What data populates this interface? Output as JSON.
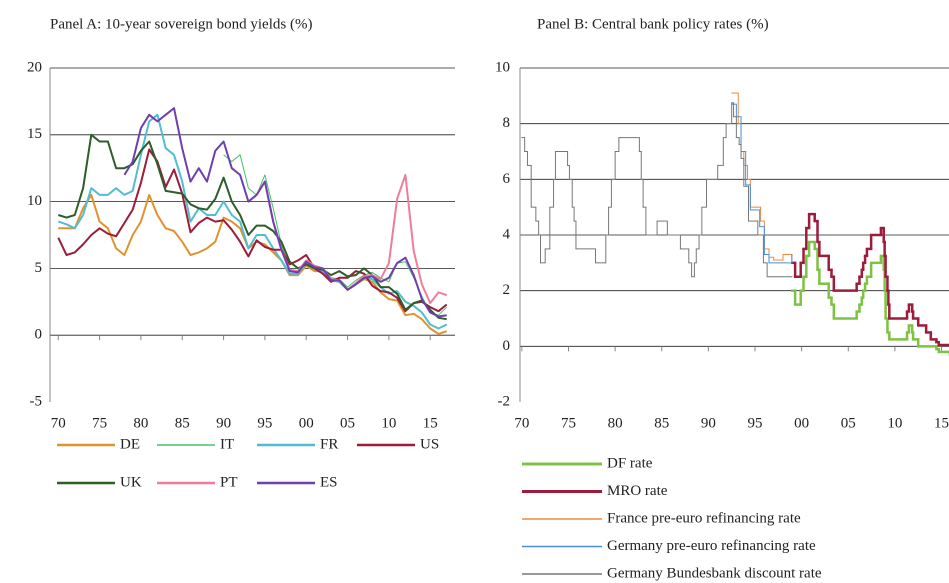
{
  "chart_data": [
    {
      "type": "line",
      "title": "Panel A: 10-year sovereign bond yields (%)",
      "x": [
        1970,
        1971,
        1972,
        1973,
        1974,
        1975,
        1976,
        1977,
        1978,
        1979,
        1980,
        1981,
        1982,
        1983,
        1984,
        1985,
        1986,
        1987,
        1988,
        1989,
        1990,
        1991,
        1992,
        1993,
        1994,
        1995,
        1996,
        1997,
        1998,
        1999,
        2000,
        2001,
        2002,
        2003,
        2004,
        2005,
        2006,
        2007,
        2008,
        2009,
        2010,
        2011,
        2012,
        2013,
        2014,
        2015,
        2016,
        2017
      ],
      "xlim": [
        1969,
        2018
      ],
      "xticks": [
        {
          "value": 1970,
          "label": "70"
        },
        {
          "value": 1975,
          "label": "75"
        },
        {
          "value": 1980,
          "label": "80"
        },
        {
          "value": 1985,
          "label": "85"
        },
        {
          "value": 1990,
          "label": "90"
        },
        {
          "value": 1995,
          "label": "95"
        },
        {
          "value": 2000,
          "label": "00"
        },
        {
          "value": 2005,
          "label": "05"
        },
        {
          "value": 2010,
          "label": "10"
        },
        {
          "value": 2015,
          "label": "15"
        }
      ],
      "ylim": [
        -5,
        20
      ],
      "yticks": [
        20,
        15,
        10,
        5,
        0,
        -5
      ],
      "grid": true,
      "legend": "bottom",
      "series": [
        {
          "name": "DE",
          "color": "#e0922f",
          "line_width": 2,
          "values": [
            8,
            8,
            8,
            9.5,
            10.5,
            8.5,
            8,
            6.5,
            6,
            7.5,
            8.5,
            10.5,
            9,
            8,
            7.8,
            7,
            6,
            6.2,
            6.5,
            7,
            8.8,
            8.5,
            8,
            6.5,
            7,
            6.8,
            6.2,
            5.6,
            4.5,
            4.5,
            5.2,
            4.8,
            4.8,
            4.1,
            4,
            3.4,
            3.8,
            4.2,
            4,
            3.2,
            2.7,
            2.6,
            1.5,
            1.6,
            1.2,
            0.5,
            0.1,
            0.3
          ]
        },
        {
          "name": "IT",
          "color": "#45c06a",
          "line_width": 1,
          "values": [
            null,
            null,
            null,
            null,
            null,
            null,
            null,
            null,
            null,
            null,
            null,
            null,
            null,
            null,
            null,
            null,
            null,
            null,
            null,
            null,
            13.5,
            13,
            13.5,
            11,
            10.5,
            12,
            9.5,
            6.8,
            4.9,
            4.7,
            5.6,
            5.2,
            5,
            4.3,
            4.2,
            3.6,
            4.1,
            4.5,
            4.7,
            4.3,
            4,
            5.4,
            5.5,
            4.3,
            2.9,
            1.7,
            1.5,
            2.1
          ]
        },
        {
          "name": "FR",
          "color": "#52bcd3",
          "line_width": 2,
          "values": [
            8.5,
            8.3,
            8,
            9,
            11,
            10.5,
            10.5,
            11,
            10.5,
            10.8,
            13.5,
            16,
            16.5,
            14,
            13.5,
            11.5,
            8.5,
            9.5,
            9,
            9,
            10,
            9,
            8.5,
            6.5,
            7.5,
            7.5,
            6.5,
            5.6,
            4.6,
            4.6,
            5.4,
            5,
            4.8,
            4.1,
            4,
            3.4,
            3.8,
            4.3,
            4.2,
            3.6,
            3.1,
            3.3,
            2.5,
            2.2,
            1.7,
            0.8,
            0.5,
            0.8
          ]
        },
        {
          "name": "US",
          "color": "#9c1c3c",
          "line_width": 2,
          "values": [
            7.3,
            6,
            6.2,
            6.8,
            7.5,
            8,
            7.6,
            7.4,
            8.4,
            9.4,
            11.4,
            13.9,
            13,
            11.1,
            12.4,
            10.6,
            7.7,
            8.4,
            8.8,
            8.5,
            8.6,
            7.9,
            7,
            5.9,
            7.1,
            6.6,
            6.4,
            6.4,
            5.3,
            5.6,
            6,
            5,
            4.6,
            4,
            4.3,
            4.3,
            4.8,
            4.6,
            3.7,
            3.3,
            3.2,
            2.8,
            1.8,
            2.4,
            2.5,
            2.1,
            1.8,
            2.3
          ]
        },
        {
          "name": "UK",
          "color": "#2e5d2a",
          "line_width": 2,
          "values": [
            9,
            8.8,
            9,
            11,
            15,
            14.5,
            14.5,
            12.5,
            12.5,
            12.8,
            13.8,
            14.5,
            12.8,
            10.8,
            10.7,
            10.6,
            9.8,
            9.5,
            9.4,
            10.2,
            11.8,
            10,
            9,
            7.5,
            8.2,
            8.2,
            7.8,
            7,
            5.5,
            5,
            5.3,
            5,
            4.9,
            4.5,
            4.8,
            4.4,
            4.5,
            5,
            4.5,
            3.6,
            3.6,
            3.1,
            1.9,
            2.4,
            2.6,
            1.9,
            1.3,
            1.2
          ]
        },
        {
          "name": "PT",
          "color": "#f07c9b",
          "line_width": 2,
          "values": [
            null,
            null,
            null,
            null,
            null,
            null,
            null,
            null,
            null,
            null,
            null,
            null,
            null,
            null,
            null,
            null,
            null,
            null,
            null,
            null,
            null,
            null,
            null,
            10,
            10.5,
            11.5,
            8.5,
            6.4,
            4.9,
            4.8,
            5.6,
            5.2,
            5,
            4.2,
            4.1,
            3.4,
            3.9,
            4.4,
            4.5,
            4.2,
            5.4,
            10.2,
            12,
            6.3,
            3.8,
            2.4,
            3.2,
            3
          ]
        },
        {
          "name": "ES",
          "color": "#6f3fae",
          "line_width": 2,
          "values": [
            null,
            null,
            null,
            null,
            null,
            null,
            null,
            null,
            12,
            13,
            15.5,
            16.5,
            16,
            16.5,
            17,
            14,
            11.5,
            12.5,
            11.5,
            13.8,
            14.5,
            12.5,
            12,
            10,
            10.5,
            11.5,
            8.5,
            6.4,
            4.8,
            4.7,
            5.5,
            5.1,
            5,
            4.1,
            4.1,
            3.4,
            3.8,
            4.3,
            4.4,
            4,
            4.3,
            5.4,
            5.8,
            4.5,
            2.7,
            1.7,
            1.4,
            1.5
          ]
        }
      ]
    },
    {
      "type": "step",
      "title": "Panel B: Central bank policy rates (%)",
      "xlim": [
        1969.8,
        2015.8
      ],
      "xticks": [
        {
          "value": 1970,
          "label": "70"
        },
        {
          "value": 1975,
          "label": "75"
        },
        {
          "value": 1980,
          "label": "80"
        },
        {
          "value": 1985,
          "label": "85"
        },
        {
          "value": 1990,
          "label": "90"
        },
        {
          "value": 1995,
          "label": "95"
        },
        {
          "value": 2000,
          "label": "00"
        },
        {
          "value": 2005,
          "label": "05"
        },
        {
          "value": 2010,
          "label": "10"
        },
        {
          "value": 2015,
          "label": "15"
        }
      ],
      "ylim": [
        -2,
        10
      ],
      "yticks": [
        10,
        8,
        6,
        4,
        2,
        0,
        -2
      ],
      "grid": true,
      "legend": "bottom",
      "series": [
        {
          "name": "DF rate",
          "color": "#7dc243",
          "line_width": 2.5,
          "x": [
            1999,
            1999.3,
            1999.9,
            2000.2,
            2000.5,
            2000.8,
            2001.4,
            2001.7,
            2001.9,
            2002.9,
            2003.2,
            2003.45,
            2005.9,
            2006.2,
            2006.45,
            2006.6,
            2006.8,
            2007,
            2007.45,
            2008.5,
            2008.8,
            2008.9,
            2009,
            2009.2,
            2009.4,
            2011.3,
            2011.5,
            2011.85,
            2011.95,
            2012.5,
            2014.45,
            2014.7,
            2015.9,
            2016.2,
            2018
          ],
          "values": [
            2,
            1.5,
            2,
            2.5,
            3.25,
            3.75,
            3.5,
            2.75,
            2.25,
            1.75,
            1.5,
            1,
            1.25,
            1.5,
            1.75,
            2,
            2.25,
            2.5,
            3,
            3.25,
            2.75,
            2,
            1,
            0.5,
            0.25,
            0.5,
            0.75,
            0.5,
            0.25,
            0,
            -0.1,
            -0.2,
            -0.3,
            -0.4,
            -0.4
          ]
        },
        {
          "name": "MRO rate",
          "color": "#9c1c3c",
          "line_width": 2.5,
          "x": [
            1999,
            1999.3,
            1999.9,
            2000.2,
            2000.5,
            2000.8,
            2001.4,
            2001.7,
            2001.9,
            2002.9,
            2003.2,
            2003.45,
            2005.9,
            2006.2,
            2006.45,
            2006.6,
            2006.8,
            2007,
            2007.45,
            2008.5,
            2008.8,
            2008.9,
            2009,
            2009.2,
            2009.3,
            2009.4,
            2011.3,
            2011.5,
            2011.85,
            2011.95,
            2012.5,
            2013.35,
            2013.85,
            2014.45,
            2014.7,
            2016.2,
            2018
          ],
          "values": [
            3,
            2.5,
            3,
            3.5,
            4.25,
            4.75,
            4.5,
            3.75,
            3.25,
            2.75,
            2.5,
            2,
            2.25,
            2.5,
            2.75,
            3,
            3.25,
            3.5,
            4,
            4.25,
            3.75,
            3.25,
            2.5,
            2,
            1.5,
            1,
            1.25,
            1.5,
            1.25,
            1,
            0.75,
            0.5,
            0.25,
            0.15,
            0.05,
            0,
            0
          ]
        },
        {
          "name": "France pre-euro refinancing rate",
          "color": "#f08a3c",
          "line_width": 1,
          "x": [
            1992.5,
            1993.2,
            1993.5,
            1993.8,
            1994.2,
            1994.5,
            1995.2,
            1995.6,
            1996,
            1996.5,
            1997,
            1998,
            1998.95
          ],
          "values": [
            9.1,
            8,
            7,
            6.5,
            6,
            5,
            5,
            4.5,
            3.5,
            3.2,
            3.1,
            3.3,
            3
          ]
        },
        {
          "name": "Germany pre-euro refinancing rate",
          "color": "#4a8fd8",
          "line_width": 1,
          "x": [
            1992.5,
            1993,
            1993.5,
            1994,
            1994.5,
            1995.5,
            1996,
            1996.5,
            1998.95
          ],
          "values": [
            8.7,
            8.25,
            7,
            5.8,
            4.9,
            4.3,
            3.3,
            3,
            3.3
          ]
        },
        {
          "name": "Germany Bundesbank discount rate",
          "color": "#777777",
          "line_width": 1,
          "x": [
            1970,
            1970.3,
            1970.6,
            1971,
            1971.5,
            1971.8,
            1972,
            1972.5,
            1973,
            1973.4,
            1973.6,
            1974.9,
            1975.1,
            1975.4,
            1975.6,
            1975.8,
            1977.9,
            1979,
            1979.3,
            1979.6,
            1980,
            1980.4,
            1982.6,
            1982.8,
            1983,
            1983.3,
            1984.5,
            1985.6,
            1987,
            1987.9,
            1988.2,
            1988.5,
            1988.7,
            1989,
            1989.3,
            1989.8,
            1991,
            1991.6,
            1991.9,
            1992.5,
            1992.7,
            1993,
            1993.3,
            1993.5,
            1993.8,
            1994.3,
            1995.3,
            1995.9,
            1996.3,
            1998.95
          ],
          "values": [
            7.5,
            7,
            6.5,
            5,
            4.5,
            4,
            3,
            3.5,
            5,
            6,
            7,
            6.5,
            6,
            5,
            4.5,
            3.5,
            3,
            4,
            5,
            6,
            7,
            7.5,
            7,
            6,
            5,
            4,
            4.5,
            4,
            3.5,
            3,
            2.5,
            3,
            3.5,
            4,
            5,
            6,
            6.5,
            7.5,
            8,
            8.75,
            8.25,
            7.5,
            7.25,
            6.75,
            5.75,
            4.5,
            4,
            3,
            2.5,
            2.5
          ]
        }
      ]
    }
  ]
}
